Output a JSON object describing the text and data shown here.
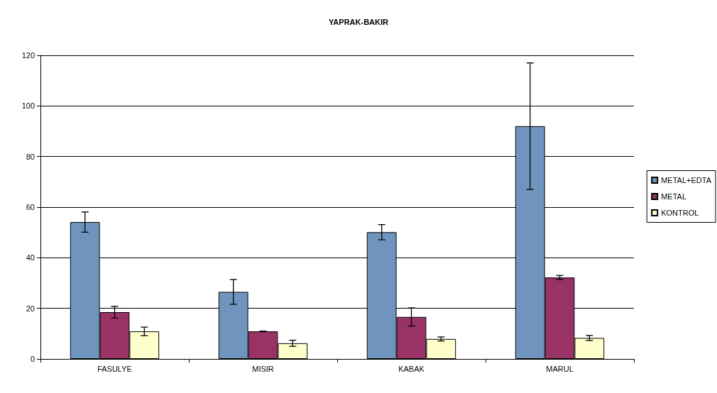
{
  "chart_data": {
    "type": "bar",
    "title": "YAPRAK-BAKIR",
    "categories": [
      "FASULYE",
      "MISIR",
      "KABAK",
      "MARUL"
    ],
    "series": [
      {
        "name": "METAL+EDTA",
        "color": "#6f94bd",
        "values": [
          54.1,
          26.5,
          50.1,
          92
        ],
        "errors": [
          4,
          4.9,
          3,
          25
        ]
      },
      {
        "name": "METAL",
        "color": "#993366",
        "values": [
          18.5,
          10.9,
          16.6,
          32.2
        ],
        "errors": [
          2.3,
          0.1,
          3.6,
          0.8
        ]
      },
      {
        "name": "KONTROL",
        "color": "#ffffcc",
        "values": [
          10.9,
          6.2,
          7.9,
          8.3
        ],
        "errors": [
          1.7,
          1.2,
          0.8,
          1
        ]
      }
    ],
    "ylim": [
      0,
      120
    ],
    "yticks": [
      0,
      20,
      40,
      60,
      80,
      100,
      120
    ],
    "grid": "y",
    "legend": "right"
  }
}
